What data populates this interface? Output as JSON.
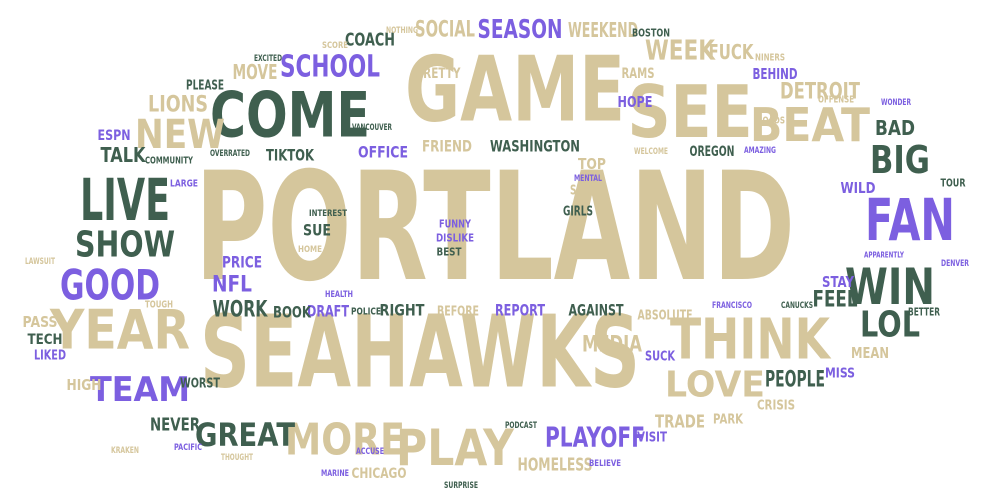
{
  "palette": {
    "tan": "#d5c69c",
    "green": "#3f5f4f",
    "purple": "#7c5fe0",
    "background": "#ffffff"
  },
  "words": [
    {
      "text": "PORTLAND",
      "color": "tan",
      "weight": 1.0
    },
    {
      "text": "SEAHAWKS",
      "color": "tan",
      "weight": 0.72
    },
    {
      "text": "GAME",
      "color": "tan",
      "weight": 0.66
    },
    {
      "text": "SEE",
      "color": "tan",
      "weight": 0.52
    },
    {
      "text": "COME",
      "color": "green",
      "weight": 0.46
    },
    {
      "text": "LIVE",
      "color": "green",
      "weight": 0.42
    },
    {
      "text": "FAN",
      "color": "purple",
      "weight": 0.42
    },
    {
      "text": "THINK",
      "color": "tan",
      "weight": 0.4
    },
    {
      "text": "YEAR",
      "color": "tan",
      "weight": 0.4
    },
    {
      "text": "PLAY",
      "color": "tan",
      "weight": 0.38
    },
    {
      "text": "WIN",
      "color": "green",
      "weight": 0.36
    },
    {
      "text": "BEAT",
      "color": "tan",
      "weight": 0.33
    },
    {
      "text": "MORE",
      "color": "tan",
      "weight": 0.32
    },
    {
      "text": "GOOD",
      "color": "purple",
      "weight": 0.3
    },
    {
      "text": "NEW",
      "color": "tan",
      "weight": 0.3
    },
    {
      "text": "BIG",
      "color": "green",
      "weight": 0.28
    },
    {
      "text": "LOVE",
      "color": "tan",
      "weight": 0.27
    },
    {
      "text": "SHOW",
      "color": "green",
      "weight": 0.26
    },
    {
      "text": "LOL",
      "color": "green",
      "weight": 0.25
    },
    {
      "text": "TEAM",
      "color": "purple",
      "weight": 0.24
    },
    {
      "text": "GREAT",
      "color": "green",
      "weight": 0.23
    },
    {
      "text": "SCHOOL",
      "color": "purple",
      "weight": 0.23
    },
    {
      "text": "PLAYOFF",
      "color": "purple",
      "weight": 0.22
    },
    {
      "text": "WEEK",
      "color": "tan",
      "weight": 0.21
    },
    {
      "text": "SEASON",
      "color": "purple",
      "weight": 0.2
    },
    {
      "text": "SOCIAL",
      "color": "tan",
      "weight": 0.18
    },
    {
      "text": "LIONS",
      "color": "tan",
      "weight": 0.18
    },
    {
      "text": "MEDIA",
      "color": "tan",
      "weight": 0.17
    },
    {
      "text": "DETROIT",
      "color": "tan",
      "weight": 0.17
    },
    {
      "text": "FEEL",
      "color": "green",
      "weight": 0.17
    },
    {
      "text": "WORK",
      "color": "green",
      "weight": 0.16
    },
    {
      "text": "PEOPLE",
      "color": "green",
      "weight": 0.16
    },
    {
      "text": "NFL",
      "color": "purple",
      "weight": 0.15
    },
    {
      "text": "FUCK",
      "color": "tan",
      "weight": 0.15
    },
    {
      "text": "WEEKEND",
      "color": "tan",
      "weight": 0.15
    },
    {
      "text": "MOVE",
      "color": "tan",
      "weight": 0.15
    },
    {
      "text": "BAD",
      "color": "green",
      "weight": 0.15
    },
    {
      "text": "TALK",
      "color": "green",
      "weight": 0.14
    },
    {
      "text": "COACH",
      "color": "green",
      "weight": 0.14
    },
    {
      "text": "HOMELESS",
      "color": "tan",
      "weight": 0.14
    },
    {
      "text": "TRADE",
      "color": "tan",
      "weight": 0.14
    },
    {
      "text": "NEVER",
      "color": "green",
      "weight": 0.14
    },
    {
      "text": "WASHINGTON",
      "color": "green",
      "weight": 0.13
    },
    {
      "text": "FRIEND",
      "color": "tan",
      "weight": 0.13
    },
    {
      "text": "OFFICE",
      "color": "purple",
      "weight": 0.13
    },
    {
      "text": "TIKTOK",
      "color": "green",
      "weight": 0.12
    },
    {
      "text": "PRICE",
      "color": "purple",
      "weight": 0.12
    },
    {
      "text": "SUE",
      "color": "green",
      "weight": 0.12
    },
    {
      "text": "DRAFT",
      "color": "purple",
      "weight": 0.12
    },
    {
      "text": "BOOK",
      "color": "green",
      "weight": 0.12
    },
    {
      "text": "RIGHT",
      "color": "green",
      "weight": 0.12
    },
    {
      "text": "REPORT",
      "color": "purple",
      "weight": 0.12
    },
    {
      "text": "AGAINST",
      "color": "green",
      "weight": 0.12
    },
    {
      "text": "STAY",
      "color": "purple",
      "weight": 0.11
    },
    {
      "text": "WILD",
      "color": "purple",
      "weight": 0.11
    },
    {
      "text": "HOPE",
      "color": "purple",
      "weight": 0.11
    },
    {
      "text": "BEHIND",
      "color": "purple",
      "weight": 0.11
    },
    {
      "text": "TOP",
      "color": "tan",
      "weight": 0.11
    },
    {
      "text": "HIGH",
      "color": "tan",
      "weight": 0.11
    },
    {
      "text": "MEAN",
      "color": "tan",
      "weight": 0.11
    },
    {
      "text": "PASS",
      "color": "tan",
      "weight": 0.11
    },
    {
      "text": "TECH",
      "color": "green",
      "weight": 0.1
    },
    {
      "text": "ESPN",
      "color": "purple",
      "weight": 0.1
    },
    {
      "text": "PRETTY",
      "color": "tan",
      "weight": 0.1
    },
    {
      "text": "RAMS",
      "color": "tan",
      "weight": 0.1
    },
    {
      "text": "OREGON",
      "color": "green",
      "weight": 0.1
    },
    {
      "text": "CHICAGO",
      "color": "tan",
      "weight": 0.1
    },
    {
      "text": "SUCK",
      "color": "purple",
      "weight": 0.1
    },
    {
      "text": "MISS",
      "color": "purple",
      "weight": 0.1
    },
    {
      "text": "WORST",
      "color": "green",
      "weight": 0.1
    },
    {
      "text": "PLEASE",
      "color": "green",
      "weight": 0.1
    },
    {
      "text": "CRISIS",
      "color": "tan",
      "weight": 0.09
    },
    {
      "text": "PARK",
      "color": "tan",
      "weight": 0.09
    },
    {
      "text": "VISIT",
      "color": "purple",
      "weight": 0.09
    },
    {
      "text": "BEFORE",
      "color": "tan",
      "weight": 0.09
    },
    {
      "text": "ABSOLUTE",
      "color": "tan",
      "weight": 0.09
    },
    {
      "text": "SHOP",
      "color": "tan",
      "weight": 0.09
    },
    {
      "text": "GIRLS",
      "color": "green",
      "weight": 0.09
    },
    {
      "text": "LIKED",
      "color": "purple",
      "weight": 0.09
    },
    {
      "text": "BOSTON",
      "color": "green",
      "weight": 0.08
    },
    {
      "text": "BEST",
      "color": "green",
      "weight": 0.08
    },
    {
      "text": "DISLIKE",
      "color": "purple",
      "weight": 0.08
    },
    {
      "text": "FUNNY",
      "color": "purple",
      "weight": 0.08
    },
    {
      "text": "BETTER",
      "color": "green",
      "weight": 0.08
    },
    {
      "text": "TOUR",
      "color": "green",
      "weight": 0.08
    },
    {
      "text": "NINERS",
      "color": "tan",
      "weight": 0.08
    },
    {
      "text": "OFFENSE",
      "color": "tan",
      "weight": 0.08
    },
    {
      "text": "ROADS",
      "color": "tan",
      "weight": 0.08
    },
    {
      "text": "POLICE",
      "color": "green",
      "weight": 0.08
    },
    {
      "text": "COMMUNITY",
      "color": "green",
      "weight": 0.08
    },
    {
      "text": "LARGE",
      "color": "purple",
      "weight": 0.08
    },
    {
      "text": "TOUGH",
      "color": "tan",
      "weight": 0.08
    },
    {
      "text": "INTEREST",
      "color": "green",
      "weight": 0.07
    },
    {
      "text": "HOME",
      "color": "tan",
      "weight": 0.07
    },
    {
      "text": "HEALTH",
      "color": "purple",
      "weight": 0.07
    },
    {
      "text": "SCORE",
      "color": "tan",
      "weight": 0.07
    },
    {
      "text": "NOTHING",
      "color": "tan",
      "weight": 0.07
    },
    {
      "text": "EXCITED",
      "color": "green",
      "weight": 0.07
    },
    {
      "text": "VANCOUVER",
      "color": "green",
      "weight": 0.07
    },
    {
      "text": "OVERRATED",
      "color": "green",
      "weight": 0.07
    },
    {
      "text": "MENTAL",
      "color": "purple",
      "weight": 0.07
    },
    {
      "text": "WELCOME",
      "color": "tan",
      "weight": 0.07
    },
    {
      "text": "AMAZING",
      "color": "purple",
      "weight": 0.07
    },
    {
      "text": "WONDER",
      "color": "purple",
      "weight": 0.07
    },
    {
      "text": "APPARENTLY",
      "color": "purple",
      "weight": 0.07
    },
    {
      "text": "DENVER",
      "color": "purple",
      "weight": 0.07
    },
    {
      "text": "FRANCISCO",
      "color": "purple",
      "weight": 0.07
    },
    {
      "text": "CANUCKS",
      "color": "green",
      "weight": 0.07
    },
    {
      "text": "LAWSUIT",
      "color": "tan",
      "weight": 0.07
    },
    {
      "text": "KRAKEN",
      "color": "tan",
      "weight": 0.07
    },
    {
      "text": "PACIFIC",
      "color": "purple",
      "weight": 0.07
    },
    {
      "text": "THOUGHT",
      "color": "tan",
      "weight": 0.07
    },
    {
      "text": "ACCUSE",
      "color": "purple",
      "weight": 0.07
    },
    {
      "text": "MARINE",
      "color": "purple",
      "weight": 0.07
    },
    {
      "text": "SURPRISE",
      "color": "green",
      "weight": 0.07
    },
    {
      "text": "PODCAST",
      "color": "green",
      "weight": 0.07
    },
    {
      "text": "BELIEVE",
      "color": "purple",
      "weight": 0.07
    }
  ]
}
